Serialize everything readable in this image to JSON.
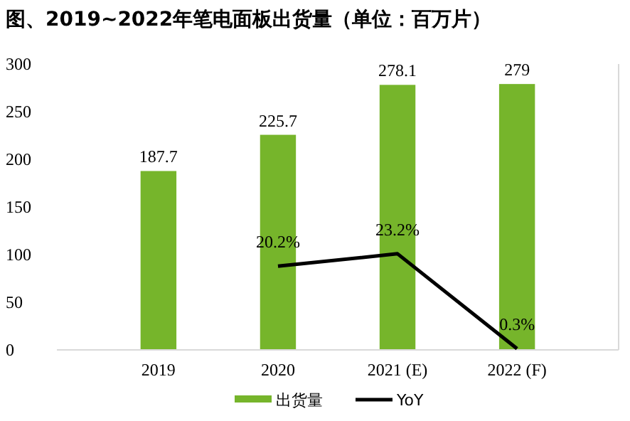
{
  "chart_data": {
    "type": "bar",
    "title": "图、2019~2022年笔电面板出货量（单位：百万片）",
    "categories": [
      "2019",
      "2020",
      "2021 (E)",
      "2022 (F)"
    ],
    "series": [
      {
        "name": "出货量",
        "color": "#76b52b",
        "values": [
          187.7,
          225.7,
          278.1,
          279
        ]
      },
      {
        "name": "YoY",
        "type": "line",
        "axis": "y2",
        "color": "#000000",
        "values": [
          null,
          20.2,
          23.2,
          0.3
        ],
        "value_labels": [
          null,
          "20.2%",
          "23.2%",
          "0.3%"
        ]
      }
    ],
    "ylim": [
      0,
      300
    ],
    "yticks": [
      0,
      50,
      100,
      150,
      200,
      250,
      300
    ],
    "y2lim": [
      0,
      69
    ],
    "data_labels": true,
    "legend": "bottom",
    "grid": false,
    "marker": "none",
    "line_style": "solid"
  }
}
